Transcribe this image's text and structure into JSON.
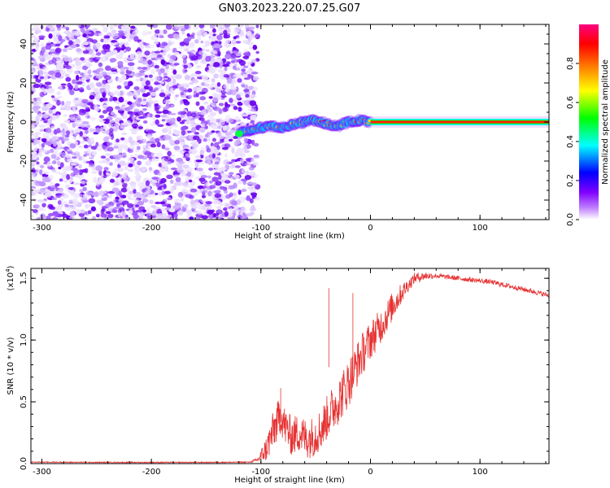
{
  "figure": {
    "title": "GN03.2023.220.07.25.G07"
  },
  "chart_data": [
    {
      "type": "heatmap",
      "title": "GN03.2023.220.07.25.G07",
      "xlabel": "Height of straight line (km)",
      "ylabel": "Frequency (Hz)",
      "xlim": [
        -310,
        163
      ],
      "ylim": [
        -50,
        50
      ],
      "x_ticks": [
        -300,
        -200,
        -100,
        0,
        100
      ],
      "x_tick_labels": [
        "-300",
        "-200",
        "-100",
        "0",
        "100"
      ],
      "y_ticks": [
        -40,
        -20,
        0,
        20,
        40
      ],
      "y_tick_labels": [
        "-40",
        "-20",
        "0",
        "20",
        "40"
      ],
      "colorbar": {
        "label": "Normalized spectral amplitude",
        "range": [
          0,
          1
        ],
        "ticks": [
          0.0,
          0.2,
          0.4,
          0.6,
          0.8
        ],
        "tick_labels": [
          "0.0",
          "0.2",
          "0.4",
          "0.6",
          "0.8"
        ],
        "colormap": [
          "#ffffff",
          "#8000ff",
          "#0000ff",
          "#00ffff",
          "#00ff00",
          "#ffff00",
          "#ff8000",
          "#ff0000",
          "#ff0080"
        ]
      },
      "features": {
        "noise_region_x": [
          -310,
          -103
        ],
        "line_signal_x": [
          -103,
          163
        ],
        "line_frequency_hz": 0,
        "signal_onset_x": -103,
        "wavy_center_points": [
          [
            -120,
            -6
          ],
          [
            -110,
            -4
          ],
          [
            -100,
            -3
          ],
          [
            -90,
            -2
          ],
          [
            -80,
            -3
          ],
          [
            -70,
            -1
          ],
          [
            -60,
            0
          ],
          [
            -50,
            1
          ],
          [
            -40,
            -1
          ],
          [
            -30,
            -2
          ],
          [
            -20,
            0
          ],
          [
            -10,
            1
          ],
          [
            0,
            0
          ]
        ]
      },
      "grid": false
    },
    {
      "type": "line",
      "xlabel": "Height of straight line (km)",
      "ylabel": "SNR (10 * v/v)",
      "y_multiplier": "(x10^4)",
      "xlim": [
        -310,
        163
      ],
      "ylim": [
        0,
        1.58
      ],
      "x_ticks": [
        -300,
        -200,
        -100,
        0,
        100
      ],
      "x_tick_labels": [
        "-300",
        "-200",
        "-100",
        "0",
        "100"
      ],
      "y_ticks": [
        0,
        0.5,
        1.0,
        1.5
      ],
      "y_tick_labels": [
        "0.0",
        "0.5",
        "1.0",
        "1.5"
      ],
      "color": "#e63232",
      "series": [
        {
          "x": [
            -310,
            -250,
            -200,
            -150,
            -110,
            -103,
            -95,
            -88,
            -82,
            -78,
            -72,
            -65,
            -58,
            -52,
            -45,
            -38,
            -30,
            -22,
            -15,
            -8,
            0,
            10,
            20,
            30,
            40,
            50,
            60,
            70,
            80,
            90,
            100,
            110,
            120,
            130,
            140,
            150,
            163
          ],
          "values": [
            0.012,
            0.01,
            0.01,
            0.01,
            0.012,
            0.03,
            0.12,
            0.28,
            0.4,
            0.3,
            0.22,
            0.25,
            0.2,
            0.22,
            0.28,
            0.4,
            0.5,
            0.62,
            0.75,
            0.88,
            1.0,
            1.12,
            1.27,
            1.4,
            1.5,
            1.52,
            1.52,
            1.51,
            1.5,
            1.49,
            1.48,
            1.47,
            1.45,
            1.43,
            1.41,
            1.39,
            1.36
          ]
        }
      ],
      "noise_amplitude": [
        [
          -310,
          0.004
        ],
        [
          -110,
          0.004
        ],
        [
          -103,
          0.02
        ],
        [
          -90,
          0.16
        ],
        [
          -60,
          0.16
        ],
        [
          -40,
          0.18
        ],
        [
          -20,
          0.2
        ],
        [
          0,
          0.16
        ],
        [
          20,
          0.12
        ],
        [
          35,
          0.05
        ],
        [
          60,
          0.02
        ],
        [
          163,
          0.02
        ]
      ],
      "spikes": [
        [
          -82,
          0.61
        ],
        [
          -38,
          1.42
        ],
        [
          -16,
          1.38
        ]
      ],
      "grid": false
    }
  ]
}
